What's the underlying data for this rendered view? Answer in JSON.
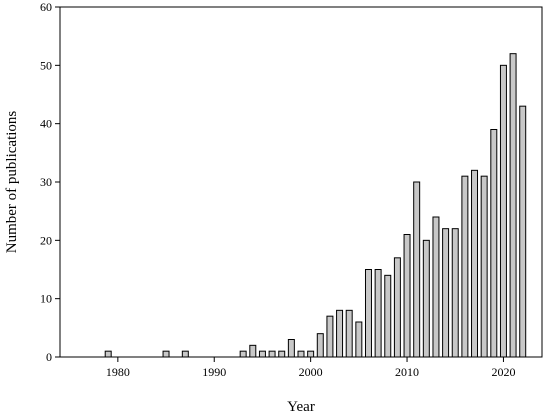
{
  "chart_data": {
    "type": "bar",
    "title": "",
    "xlabel": "Year",
    "ylabel": "Number of publications",
    "xlim": [
      1974,
      2024
    ],
    "ylim": [
      0,
      60
    ],
    "xticks": [
      1980,
      1990,
      2000,
      2010,
      2020
    ],
    "yticks": [
      0,
      10,
      20,
      30,
      40,
      50,
      60
    ],
    "grid": false,
    "bar_color": "#c8c8c8",
    "x": [
      1979,
      1985,
      1987,
      1993,
      1994,
      1995,
      1996,
      1997,
      1998,
      1999,
      2000,
      2001,
      2002,
      2003,
      2004,
      2005,
      2006,
      2007,
      2008,
      2009,
      2010,
      2011,
      2012,
      2013,
      2014,
      2015,
      2016,
      2017,
      2018,
      2019,
      2020,
      2021,
      2022
    ],
    "values": [
      1,
      1,
      1,
      1,
      2,
      1,
      1,
      1,
      3,
      1,
      1,
      4,
      7,
      8,
      8,
      6,
      15,
      15,
      14,
      17,
      21,
      30,
      20,
      24,
      22,
      22,
      31,
      32,
      31,
      39,
      50,
      52,
      43
    ]
  }
}
